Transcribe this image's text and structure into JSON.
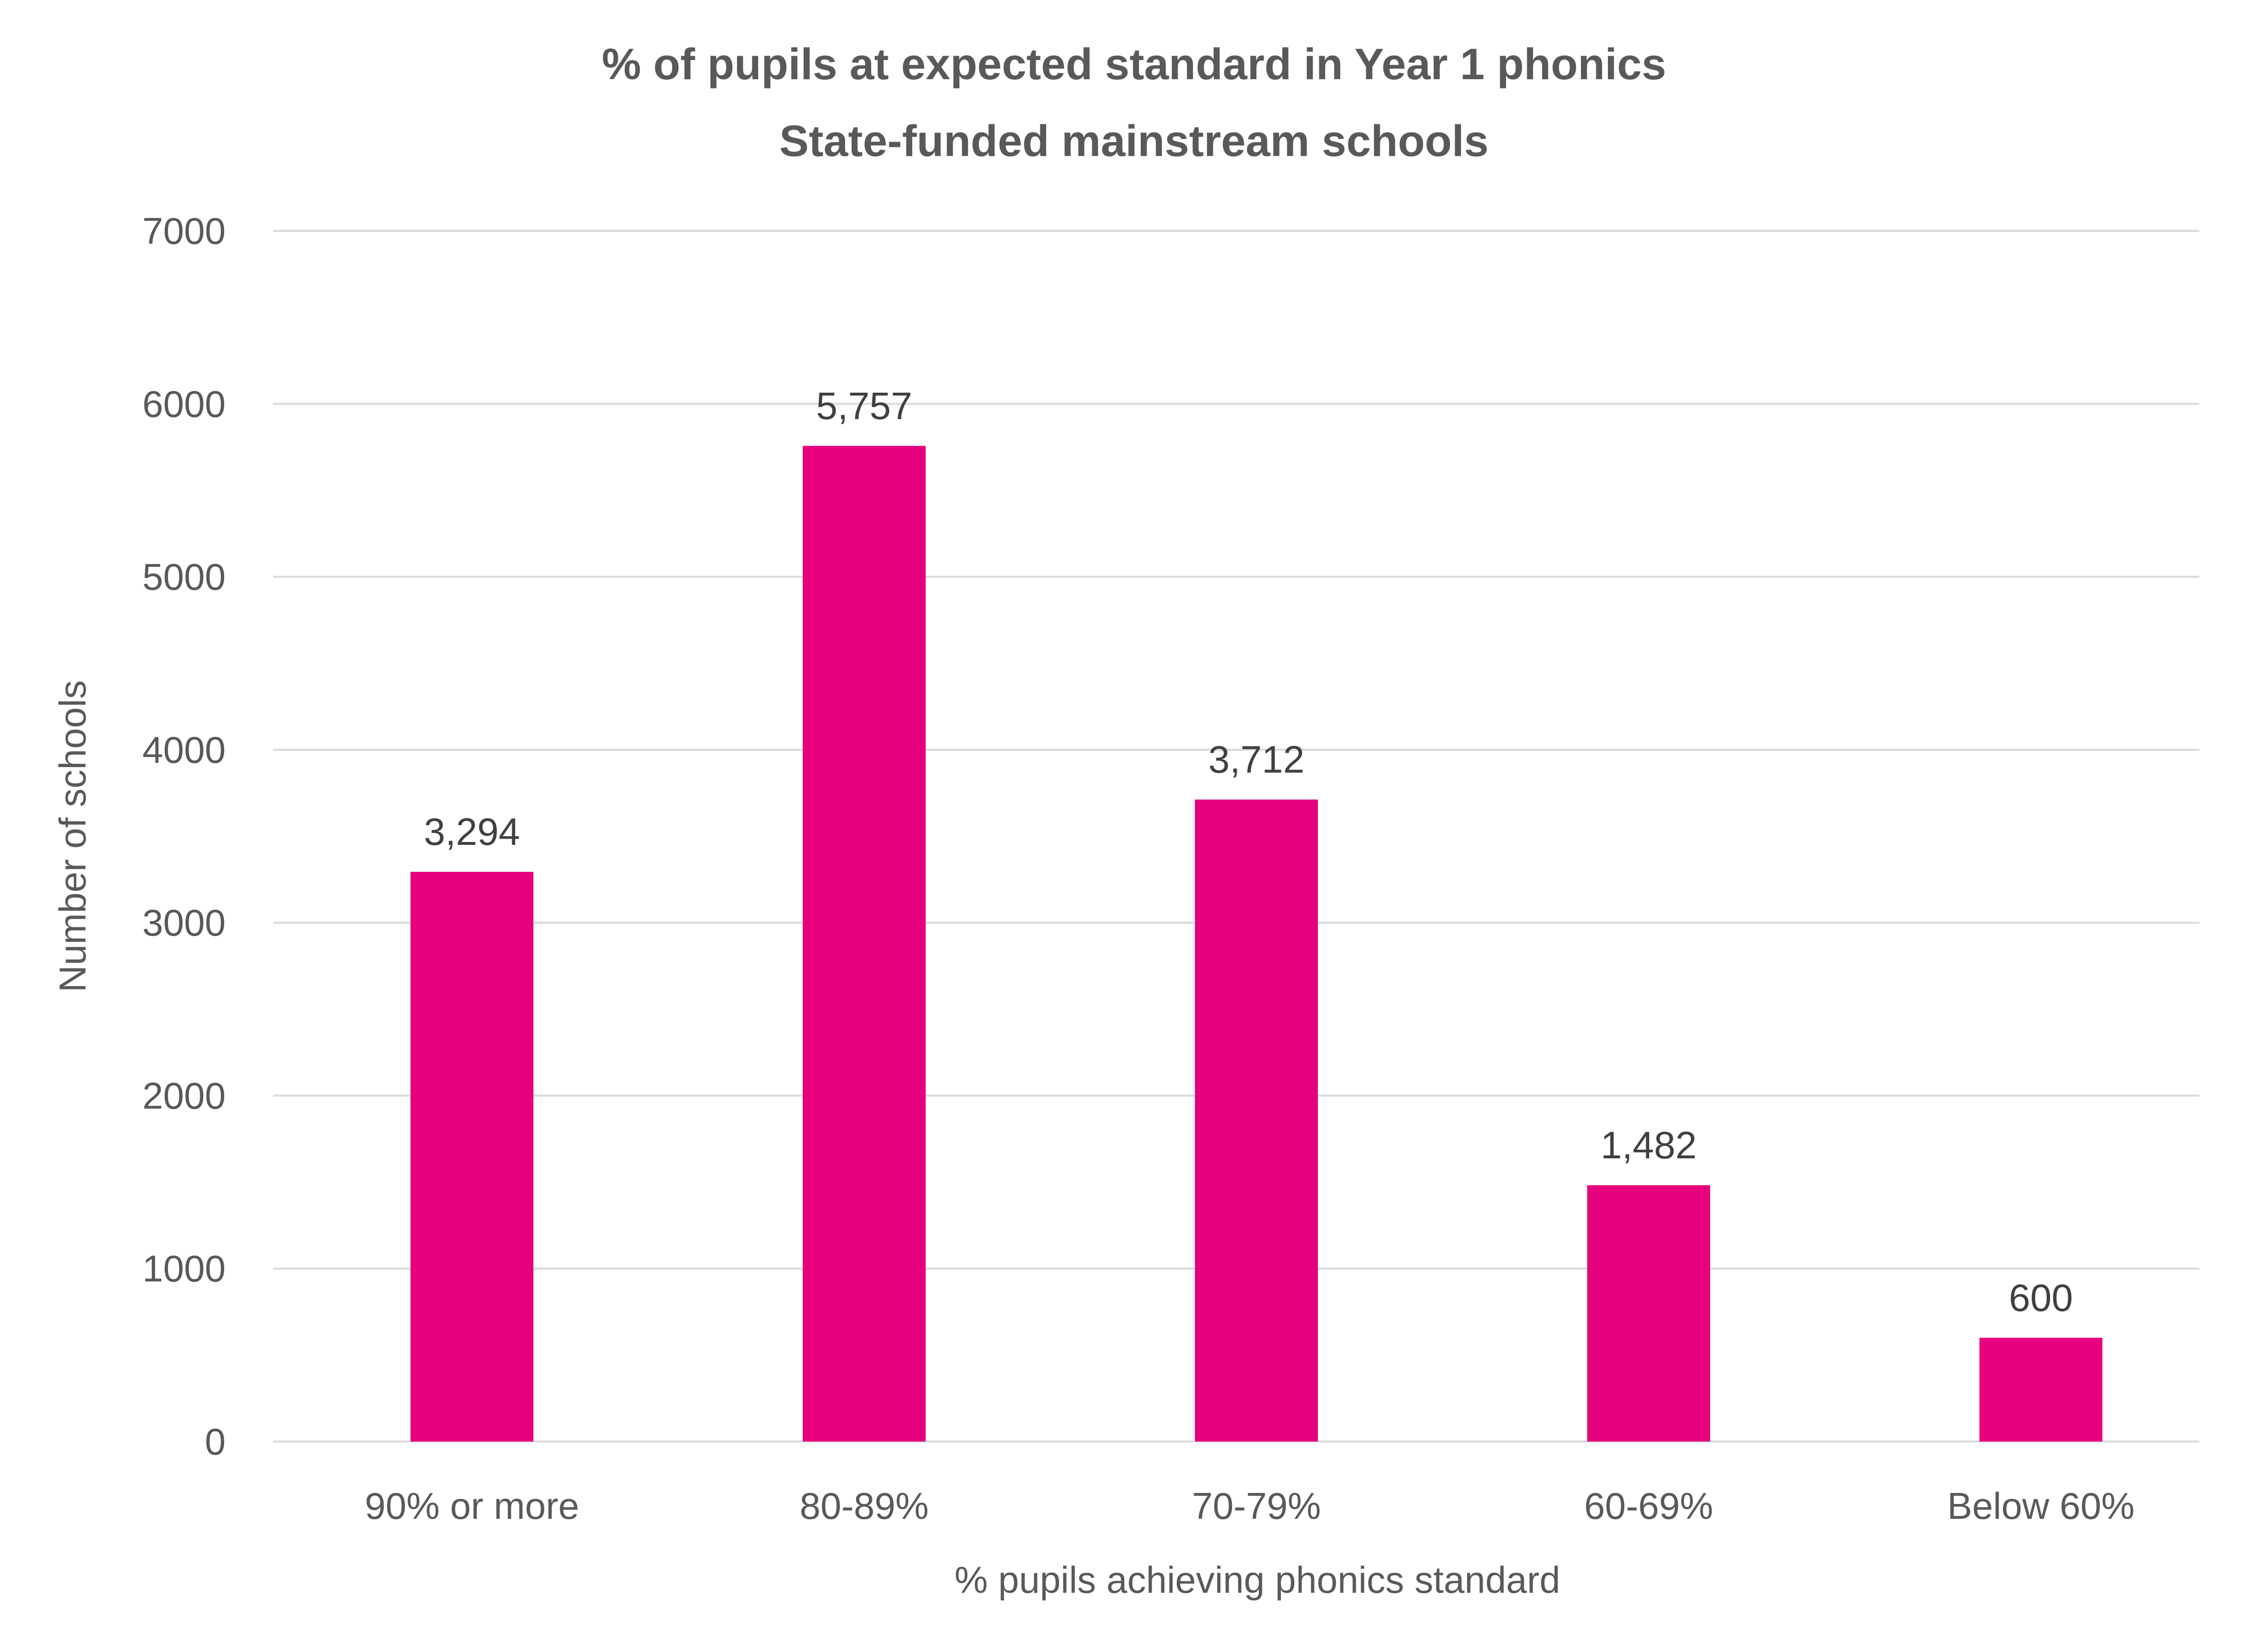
{
  "chart_data": {
    "type": "bar",
    "title": "% of pupils at expected standard in Year 1 phonics",
    "subtitle": "State-funded mainstream schools",
    "xlabel": "% pupils achieving phonics standard",
    "ylabel": "Number of schools",
    "categories": [
      "90% or  more",
      "80-89%",
      "70-79%",
      "60-69%",
      "Below 60%"
    ],
    "values": [
      3294,
      5757,
      3712,
      1482,
      600
    ],
    "data_labels": [
      "3,294",
      "5,757",
      "3,712",
      "1,482",
      "600"
    ],
    "ylim": [
      0,
      7000
    ],
    "yticks": [
      "0",
      "1000",
      "2000",
      "3000",
      "4000",
      "5000",
      "6000",
      "7000"
    ],
    "grid": true,
    "legend": "none",
    "colors": {
      "bar": "#E6007E",
      "grid": "#D9D9D9",
      "text": "#595959"
    }
  }
}
